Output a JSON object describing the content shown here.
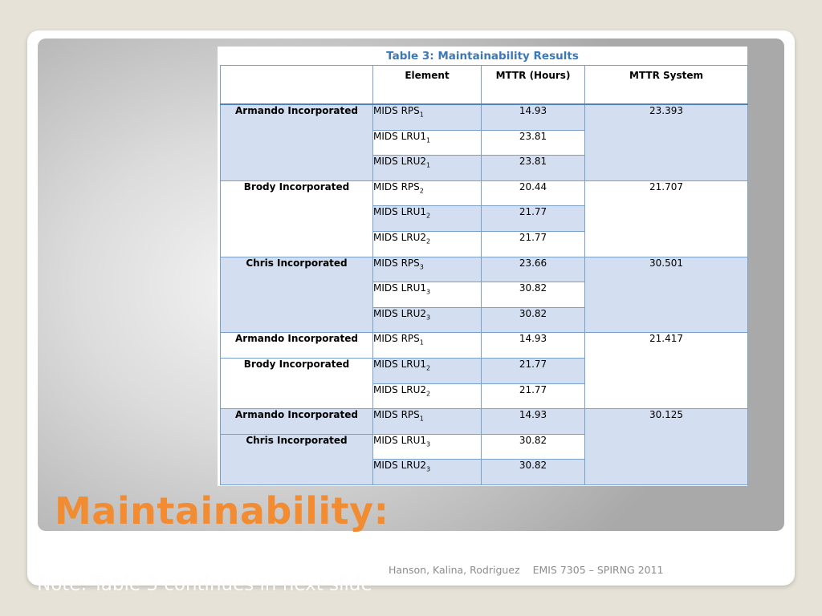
{
  "table": {
    "caption": "Table 3: Maintainability Results",
    "headers": [
      "",
      "Element",
      "MTTR (Hours)",
      "MTTR System"
    ],
    "groups": [
      {
        "system": "23.393",
        "rows": [
          {
            "company": "Armando Incorporated",
            "element": "MIDS RPS",
            "sub": "1",
            "mttr": "14.93"
          },
          {
            "company": "",
            "element": "MIDS LRU1",
            "sub": "1",
            "mttr": "23.81"
          },
          {
            "company": "",
            "element": "MIDS LRU2",
            "sub": "1",
            "mttr": "23.81"
          }
        ]
      },
      {
        "system": "21.707",
        "rows": [
          {
            "company": "Brody Incorporated",
            "element": "MIDS RPS",
            "sub": "2",
            "mttr": "20.44"
          },
          {
            "company": "",
            "element": "MIDS LRU1",
            "sub": "2",
            "mttr": "21.77"
          },
          {
            "company": "",
            "element": "MIDS LRU2",
            "sub": "2",
            "mttr": "21.77"
          }
        ]
      },
      {
        "system": "30.501",
        "rows": [
          {
            "company": "Chris Incorporated",
            "element": "MIDS RPS",
            "sub": "3",
            "mttr": "23.66"
          },
          {
            "company": "",
            "element": "MIDS LRU1",
            "sub": "3",
            "mttr": "30.82"
          },
          {
            "company": "",
            "element": "MIDS LRU2",
            "sub": "3",
            "mttr": "30.82"
          }
        ]
      },
      {
        "system": "21.417",
        "rows": [
          {
            "company": "Armando Incorporated",
            "element": "MIDS RPS",
            "sub": "1",
            "mttr": "14.93"
          },
          {
            "company": "Brody Incorporated",
            "element": "MIDS LRU1",
            "sub": "2",
            "mttr": "21.77"
          },
          {
            "company": "",
            "element": "MIDS LRU2",
            "sub": "2",
            "mttr": "21.77"
          }
        ]
      },
      {
        "system": "30.125",
        "rows": [
          {
            "company": "Armando Incorporated",
            "element": "MIDS RPS",
            "sub": "1",
            "mttr": "14.93"
          },
          {
            "company": "Chris Incorporated",
            "element": "MIDS LRU1",
            "sub": "3",
            "mttr": "30.82"
          },
          {
            "company": "",
            "element": "MIDS LRU2",
            "sub": "3",
            "mttr": "30.82"
          }
        ]
      }
    ]
  },
  "slide": {
    "title": "Maintainability:",
    "footer_authors": "Hanson, Kalina, Rodriguez",
    "footer_course": "EMIS 7305 – SPIRNG 2011",
    "note": "Note:  Table 3 continues in next slide"
  },
  "colors": {
    "title": "#f28c33",
    "caption": "#3b78b8",
    "band": "#d3dff0",
    "border": "#7aa0c8"
  }
}
